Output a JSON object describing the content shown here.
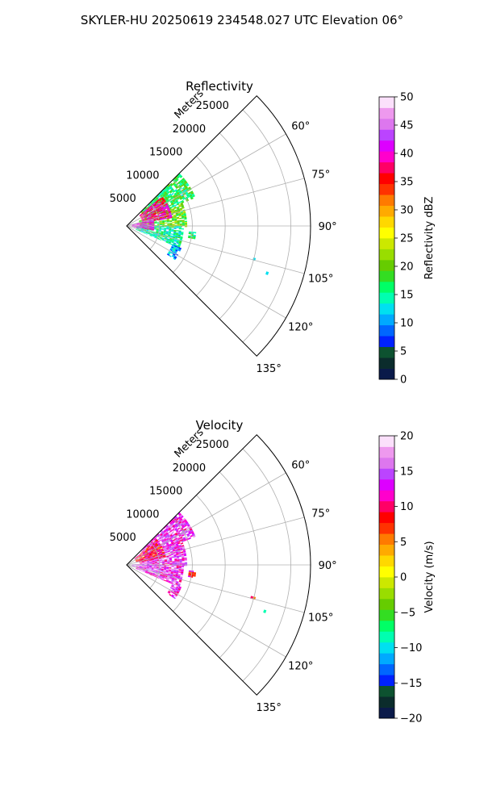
{
  "suptitle": "SKYLER-HU  20250619  234548.027 UTC Elevation 06°",
  "chart_data": [
    {
      "type": "polar-sector",
      "title": "Reflectivity",
      "radial_label": "Meters",
      "radial_ticks": [
        5000,
        10000,
        15000,
        20000,
        25000
      ],
      "radial_max": 28000,
      "angle_range_deg": [
        45,
        135
      ],
      "angle_ticks_deg": [
        60,
        75,
        90,
        105,
        120,
        135
      ],
      "grid": true,
      "colorbar": {
        "label": "Reflectivity dBZ",
        "vmin": 0,
        "vmax": 50,
        "ticks": [
          0,
          5,
          10,
          15,
          20,
          25,
          30,
          35,
          40,
          45,
          50
        ],
        "colors": [
          "#0a1a4a",
          "#0b2c2c",
          "#0d5230",
          "#0022ff",
          "#0066ff",
          "#00aaff",
          "#00e0f0",
          "#00ffb0",
          "#00ff66",
          "#33dd22",
          "#66cc00",
          "#99dd00",
          "#cce800",
          "#ffff00",
          "#ffd800",
          "#ffaa00",
          "#ff7a00",
          "#ff3300",
          "#ff0000",
          "#ff0066",
          "#ff00cc",
          "#dd00ff",
          "#bb44ff",
          "#dd77ee",
          "#ee99ee",
          "#fbe0fb"
        ]
      },
      "echo_sectors": [
        {
          "theta": [
            45,
            67
          ],
          "r": [
            3000,
            11000
          ],
          "value": 17
        },
        {
          "theta": [
            67,
            90
          ],
          "r": [
            2000,
            9000
          ],
          "value": 20
        },
        {
          "theta": [
            90,
            112
          ],
          "r": [
            1500,
            8500
          ],
          "value": 15
        },
        {
          "theta": [
            112,
            125
          ],
          "r": [
            7500,
            9000
          ],
          "value": 10
        },
        {
          "theta": [
            50,
            80
          ],
          "r": [
            2500,
            7000
          ],
          "value": 38
        },
        {
          "theta": [
            75,
            100
          ],
          "r": [
            800,
            4000
          ],
          "value": 42
        },
        {
          "theta": [
            95,
            100
          ],
          "r": [
            9500,
            10500
          ],
          "value": 16
        },
        {
          "theta": [
            104,
            105
          ],
          "r": [
            19500,
            20000
          ],
          "value": 16
        },
        {
          "theta": [
            108,
            109
          ],
          "r": [
            22000,
            22500
          ],
          "value": 16
        }
      ]
    },
    {
      "type": "polar-sector",
      "title": "Velocity",
      "radial_label": "Meters",
      "radial_ticks": [
        5000,
        10000,
        15000,
        20000,
        25000
      ],
      "radial_max": 28000,
      "angle_range_deg": [
        45,
        135
      ],
      "angle_ticks_deg": [
        60,
        75,
        90,
        105,
        120,
        135
      ],
      "grid": true,
      "colorbar": {
        "label": "Velocity (m/s)",
        "vmin": -20,
        "vmax": 20,
        "ticks": [
          -20,
          -15,
          -10,
          -5,
          0,
          5,
          10,
          15,
          20
        ],
        "colors": [
          "#0a1a4a",
          "#0b2c2c",
          "#0d5230",
          "#0022ff",
          "#0066ff",
          "#00aaff",
          "#00e0f0",
          "#00ffb0",
          "#00ff66",
          "#33dd22",
          "#66cc00",
          "#99dd00",
          "#cce800",
          "#ffff00",
          "#ffd800",
          "#ffaa00",
          "#ff7a00",
          "#ff3300",
          "#ff0000",
          "#ff0066",
          "#ff00cc",
          "#dd00ff",
          "#bb44ff",
          "#dd77ee",
          "#ee99ee",
          "#fbe0fb"
        ]
      },
      "echo_sectors": [
        {
          "theta": [
            45,
            67
          ],
          "r": [
            3000,
            11000
          ],
          "value": 14
        },
        {
          "theta": [
            67,
            90
          ],
          "r": [
            2000,
            9000
          ],
          "value": 14
        },
        {
          "theta": [
            90,
            112
          ],
          "r": [
            1500,
            8500
          ],
          "value": 14
        },
        {
          "theta": [
            112,
            125
          ],
          "r": [
            7500,
            9000
          ],
          "value": 14
        },
        {
          "theta": [
            50,
            78
          ],
          "r": [
            1500,
            6000
          ],
          "value": 9
        },
        {
          "theta": [
            85,
            100
          ],
          "r": [
            800,
            3500
          ],
          "value": 17
        },
        {
          "theta": [
            95,
            100
          ],
          "r": [
            9500,
            10500
          ],
          "value": 9
        },
        {
          "theta": [
            104,
            105
          ],
          "r": [
            19500,
            20000
          ],
          "value": 9
        },
        {
          "theta": [
            108,
            109
          ],
          "r": [
            22000,
            22500
          ],
          "value": -8
        }
      ]
    }
  ]
}
